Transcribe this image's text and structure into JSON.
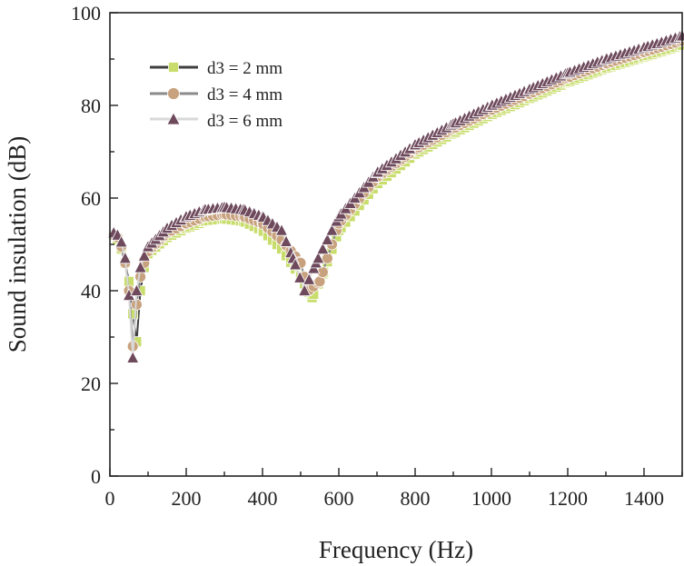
{
  "chart_data": {
    "type": "line",
    "title": "",
    "xlabel": "Frequency (Hz)",
    "ylabel": "Sound insulation (dB)",
    "xlim": [
      0,
      1500
    ],
    "ylim": [
      0,
      100
    ],
    "xticks": [
      0,
      200,
      400,
      600,
      800,
      1000,
      1200,
      1400
    ],
    "yticks": [
      0,
      20,
      40,
      60,
      80,
      100
    ],
    "x_tick_labels": [
      "0",
      "200",
      "400",
      "600",
      "800",
      "1000",
      "1200",
      "1400"
    ],
    "y_tick_labels": [
      "0",
      "20",
      "40",
      "60",
      "80",
      "100"
    ],
    "grid": false,
    "legend_position": "top-left",
    "series": [
      {
        "name": "d3 = 2 mm",
        "color": "#c8dd6c",
        "line_color": "#3f3f3f",
        "marker": "square",
        "points": [
          [
            10,
            52
          ],
          [
            20,
            51
          ],
          [
            30,
            49
          ],
          [
            40,
            46
          ],
          [
            50,
            42
          ],
          [
            60,
            35
          ],
          [
            70,
            29
          ],
          [
            80,
            40
          ],
          [
            90,
            45
          ],
          [
            100,
            48
          ],
          [
            150,
            51.5
          ],
          [
            200,
            53.5
          ],
          [
            250,
            55
          ],
          [
            300,
            55.5
          ],
          [
            350,
            55
          ],
          [
            400,
            53
          ],
          [
            450,
            49
          ],
          [
            500,
            43
          ],
          [
            530,
            38.5
          ],
          [
            560,
            44
          ],
          [
            600,
            53
          ],
          [
            700,
            63
          ],
          [
            800,
            69.5
          ],
          [
            900,
            74
          ],
          [
            1000,
            78
          ],
          [
            1100,
            81.5
          ],
          [
            1200,
            85
          ],
          [
            1300,
            88
          ],
          [
            1400,
            90.5
          ],
          [
            1500,
            93
          ]
        ]
      },
      {
        "name": "d3 = 4 mm",
        "color": "#c8a27e",
        "line_color": "#8a8a8a",
        "marker": "circle",
        "points": [
          [
            10,
            52
          ],
          [
            20,
            51.5
          ],
          [
            30,
            49.5
          ],
          [
            40,
            46
          ],
          [
            50,
            40
          ],
          [
            60,
            28
          ],
          [
            70,
            37
          ],
          [
            80,
            43
          ],
          [
            90,
            46
          ],
          [
            100,
            48.5
          ],
          [
            150,
            52.5
          ],
          [
            200,
            54.5
          ],
          [
            250,
            56
          ],
          [
            300,
            56.5
          ],
          [
            350,
            56
          ],
          [
            400,
            54.5
          ],
          [
            450,
            51
          ],
          [
            500,
            46
          ],
          [
            520,
            40
          ],
          [
            550,
            42
          ],
          [
            600,
            54.5
          ],
          [
            700,
            64.5
          ],
          [
            800,
            70.5
          ],
          [
            900,
            75
          ],
          [
            1000,
            79
          ],
          [
            1100,
            82.5
          ],
          [
            1200,
            86
          ],
          [
            1300,
            89
          ],
          [
            1400,
            91.5
          ],
          [
            1500,
            94
          ]
        ]
      },
      {
        "name": "d3 = 6 mm",
        "color": "#6e4a5c",
        "line_color": "#d8d8d8",
        "marker": "triangle",
        "points": [
          [
            10,
            52.5
          ],
          [
            20,
            52
          ],
          [
            30,
            50.5
          ],
          [
            40,
            47
          ],
          [
            50,
            39
          ],
          [
            60,
            25.5
          ],
          [
            70,
            40
          ],
          [
            80,
            45
          ],
          [
            90,
            47.5
          ],
          [
            100,
            49.5
          ],
          [
            150,
            53.5
          ],
          [
            200,
            56
          ],
          [
            250,
            57.5
          ],
          [
            300,
            58
          ],
          [
            350,
            57.5
          ],
          [
            400,
            56
          ],
          [
            450,
            53
          ],
          [
            480,
            47
          ],
          [
            510,
            40
          ],
          [
            540,
            46
          ],
          [
            600,
            56
          ],
          [
            700,
            65.5
          ],
          [
            800,
            71.5
          ],
          [
            900,
            76
          ],
          [
            1000,
            80
          ],
          [
            1100,
            83.5
          ],
          [
            1200,
            87
          ],
          [
            1300,
            90
          ],
          [
            1400,
            92.5
          ],
          [
            1500,
            95
          ]
        ]
      }
    ]
  }
}
